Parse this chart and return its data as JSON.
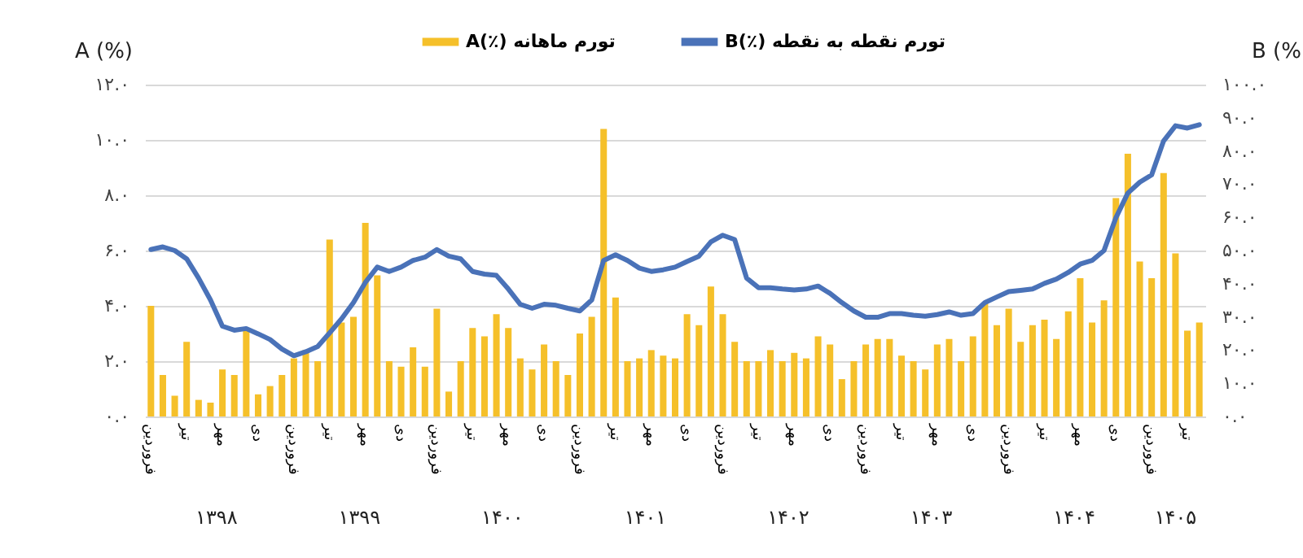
{
  "chart_data": {
    "type": "bar",
    "categories": [
      "فروردین",
      null,
      null,
      "تیر",
      null,
      null,
      "مهر",
      null,
      null,
      "دی",
      null,
      null,
      "فروردین",
      null,
      null,
      "تیر",
      null,
      null,
      "مهر",
      null,
      null,
      "دی",
      null,
      null,
      "فروردین",
      null,
      null,
      "تیر",
      null,
      null,
      "مهر",
      null,
      null,
      "دی",
      null,
      null,
      "فروردین",
      null,
      null,
      "تیر",
      null,
      null,
      "مهر",
      null,
      null,
      "دی",
      null,
      null,
      "فروردین",
      null,
      null,
      "تیر",
      null,
      null,
      "مهر",
      null,
      null,
      "دی",
      null,
      null,
      "فروردین",
      null,
      null,
      "تیر",
      null,
      null,
      "مهر",
      null,
      null,
      "دی",
      null,
      null,
      "فروردین",
      null,
      null,
      "تیر",
      null,
      null,
      "مهر",
      null,
      null,
      "دی",
      null,
      null,
      "فروردین",
      null,
      null,
      "تیر",
      null
    ],
    "series": [
      {
        "name": "A(٪) تورم ماهانه",
        "color": "#f5c02a",
        "values": [
          4.0,
          1.5,
          0.75,
          2.7,
          0.6,
          0.5,
          1.7,
          1.5,
          3.2,
          0.8,
          1.1,
          1.5,
          2.1,
          2.4,
          2.0,
          6.4,
          3.4,
          3.6,
          7.0,
          5.1,
          2.0,
          1.8,
          2.5,
          1.8,
          3.9,
          0.9,
          2.0,
          3.2,
          2.9,
          3.7,
          3.2,
          2.1,
          1.7,
          2.6,
          2.0,
          1.5,
          3.0,
          3.6,
          10.4,
          4.3,
          2.0,
          2.1,
          2.4,
          2.2,
          2.1,
          3.7,
          3.3,
          4.7,
          3.7,
          2.7,
          2.0,
          2.0,
          2.4,
          2.0,
          2.3,
          2.1,
          2.9,
          2.6,
          1.35,
          2.0,
          2.6,
          2.8,
          2.8,
          2.2,
          2.0,
          1.7,
          2.6,
          2.8,
          2.0,
          2.9,
          4.1,
          3.3,
          3.9,
          2.7,
          3.3,
          3.5,
          2.8,
          3.8,
          5.0,
          3.4,
          4.2,
          7.9,
          9.5,
          5.6,
          5.0,
          8.8,
          5.9,
          3.1,
          3.4
        ]
      },
      {
        "name": "B(٪) تورم نقطه به نقطه",
        "type": "line",
        "axis": "y2",
        "color": "#4a72b8",
        "values": [
          50.3,
          51.1,
          50.0,
          47.5,
          41.7,
          35.1,
          27.2,
          26.0,
          26.5,
          24.9,
          23.2,
          20.3,
          18.3,
          19.5,
          21.1,
          25.2,
          29.4,
          34.3,
          40.4,
          45.0,
          43.7,
          45.0,
          47.0,
          48.0,
          50.3,
          48.3,
          47.5,
          43.7,
          42.9,
          42.5,
          38.4,
          33.8,
          32.6,
          33.8,
          33.5,
          32.6,
          31.8,
          35.1,
          47.0,
          48.7,
          47.0,
          44.7,
          43.7,
          44.2,
          45.0,
          46.7,
          48.3,
          52.6,
          54.6,
          53.3,
          41.7,
          38.8,
          38.8,
          38.4,
          38.1,
          38.4,
          39.3,
          37.1,
          34.3,
          31.8,
          29.9,
          29.9,
          31.0,
          31.0,
          30.5,
          30.2,
          30.7,
          31.5,
          30.5,
          31.0,
          34.3,
          36.0,
          37.6,
          38.0,
          38.4,
          40.1,
          41.4,
          43.4,
          45.9,
          47.0,
          50.0,
          59.9,
          67.3,
          70.6,
          72.8,
          83.0,
          87.6,
          86.9,
          87.9
        ]
      }
    ],
    "ylabel": "A (%)",
    "y2label": "B (%)",
    "ylim": [
      0,
      12
    ],
    "yticks": [
      {
        "value": 0,
        "label": "۰.۰"
      },
      {
        "value": 2,
        "label": "۲.۰"
      },
      {
        "value": 4,
        "label": "۴.۰"
      },
      {
        "value": 6,
        "label": "۶.۰"
      },
      {
        "value": 8,
        "label": "۸.۰"
      },
      {
        "value": 10,
        "label": "۱۰.۰"
      },
      {
        "value": 12,
        "label": "۱۲.۰"
      }
    ],
    "y2lim": [
      0,
      100
    ],
    "y2ticks": [
      {
        "value": 0,
        "label": "۰.۰"
      },
      {
        "value": 10,
        "label": "۱۰.۰"
      },
      {
        "value": 20,
        "label": "۲۰.۰"
      },
      {
        "value": 30,
        "label": "۳۰.۰"
      },
      {
        "value": 40,
        "label": "۴۰.۰"
      },
      {
        "value": 50,
        "label": "۵۰.۰"
      },
      {
        "value": 60,
        "label": "۶۰.۰"
      },
      {
        "value": 70,
        "label": "۷۰.۰"
      },
      {
        "value": 80,
        "label": "۸۰.۰"
      },
      {
        "value": 90,
        "label": "۹۰.۰"
      },
      {
        "value": 100,
        "label": "۱۰۰.۰"
      }
    ],
    "annotations": [
      "۱۳۹۸",
      "۱۳۹۹",
      "۱۴۰۰",
      "۱۴۰۱",
      "۱۴۰۲",
      "۱۴۰۳",
      "۱۴۰۴",
      "۱۴۰۵"
    ],
    "grid": "y",
    "legend": "top",
    "line_style": "solid",
    "marker": "none"
  }
}
